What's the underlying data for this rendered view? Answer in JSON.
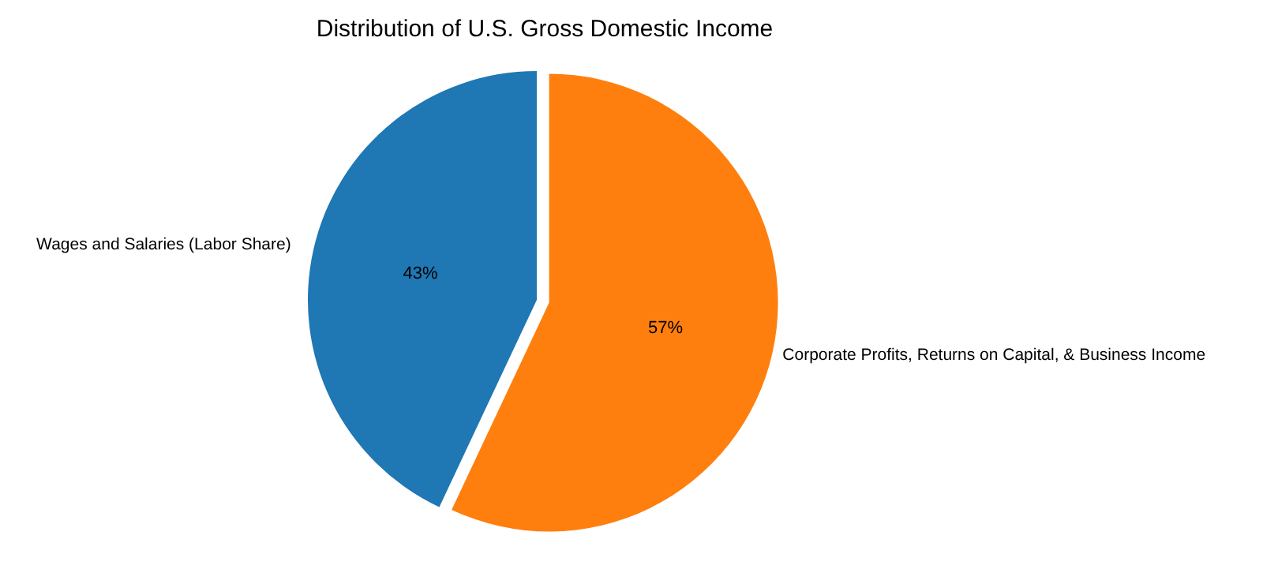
{
  "chart_data": {
    "type": "pie",
    "title": "Distribution of U.S. Gross Domestic Income",
    "categories": [
      "Wages and Salaries (Labor Share)",
      "Corporate Profits, Returns on Capital, & Business Income"
    ],
    "values": [
      43,
      57
    ],
    "colors": [
      "#1f77b4",
      "#ff7f0e"
    ],
    "value_labels": [
      "43%",
      "57%"
    ],
    "legend": false
  }
}
